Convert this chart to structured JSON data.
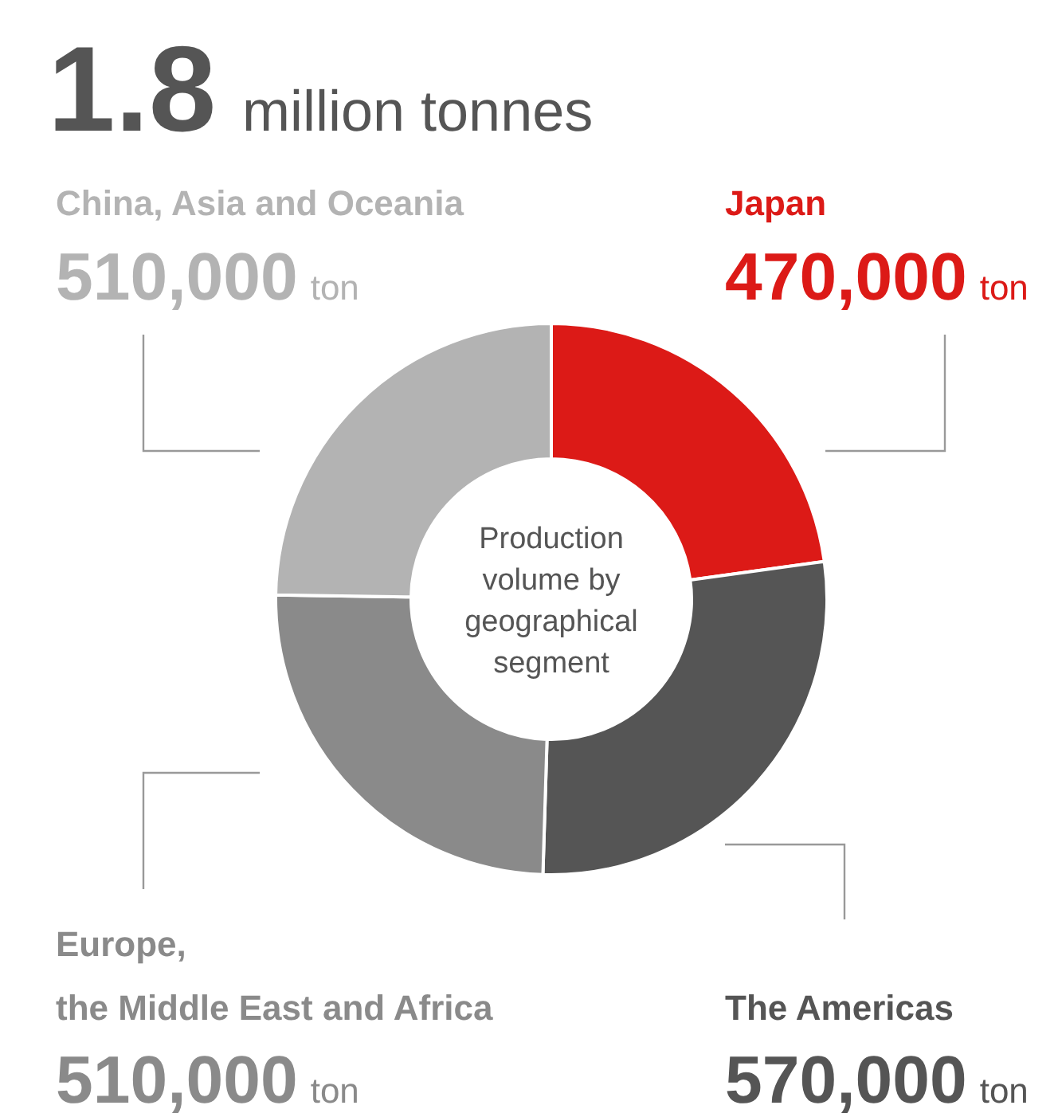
{
  "chart_data": {
    "type": "donut",
    "title": "1.8 million tonnes",
    "subtitle": "Production volume by geographical segment",
    "categories": [
      "Japan",
      "The Americas",
      "Europe,\nthe Middle East and Africa",
      "China, Asia and Oceania"
    ],
    "values": [
      470000,
      570000,
      510000,
      510000
    ],
    "colors": [
      "#dc1a17",
      "#555555",
      "#8a8a8a",
      "#b3b3b3"
    ],
    "value_labels": [
      "470,000 ton",
      "570,000 ton",
      "510,000 ton",
      "510,000 ton"
    ]
  }
}
